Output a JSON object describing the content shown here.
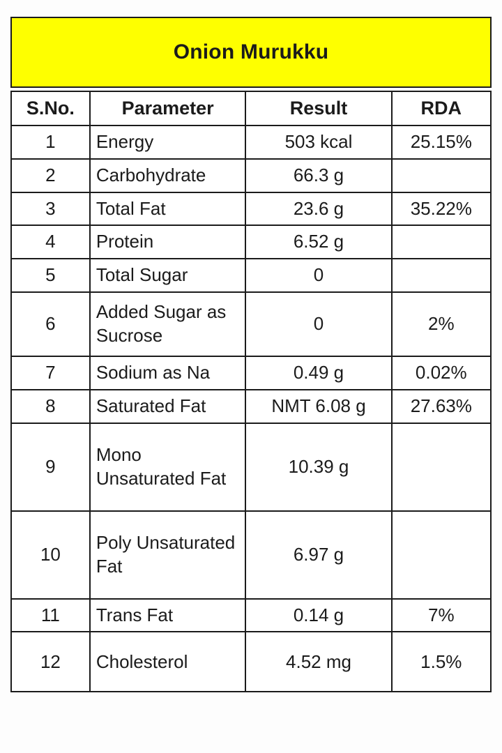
{
  "title": "Onion Murukku",
  "colors": {
    "banner_bg": "#feff00",
    "border": "#1b1b1b",
    "text": "#1b1b1b"
  },
  "table": {
    "headers": {
      "sno": "S.No.",
      "parameter": "Parameter",
      "result": "Result",
      "rda": "RDA"
    },
    "rows": [
      {
        "sno": "1",
        "parameter": "Energy",
        "result": "503 kcal",
        "rda": "25.15%"
      },
      {
        "sno": "2",
        "parameter": "Carbohydrate",
        "result": "66.3 g",
        "rda": ""
      },
      {
        "sno": "3",
        "parameter": "Total Fat",
        "result": "23.6 g",
        "rda": "35.22%"
      },
      {
        "sno": "4",
        "parameter": "Protein",
        "result": "6.52 g",
        "rda": ""
      },
      {
        "sno": "5",
        "parameter": "Total Sugar",
        "result": "0",
        "rda": ""
      },
      {
        "sno": "6",
        "parameter": "Added Sugar as Sucrose",
        "result": "0",
        "rda": "2%"
      },
      {
        "sno": "7",
        "parameter": "Sodium as Na",
        "result": "0.49 g",
        "rda": "0.02%"
      },
      {
        "sno": "8",
        "parameter": "Saturated Fat",
        "result": "NMT 6.08 g",
        "rda": "27.63%"
      },
      {
        "sno": "9",
        "parameter": "Mono Unsaturated Fat",
        "result": "10.39 g",
        "rda": ""
      },
      {
        "sno": "10",
        "parameter": "Poly Unsaturated Fat",
        "result": "6.97 g",
        "rda": ""
      },
      {
        "sno": "11",
        "parameter": "Trans Fat",
        "result": "0.14 g",
        "rda": "7%"
      },
      {
        "sno": "12",
        "parameter": "Cholesterol",
        "result": "4.52 mg",
        "rda": "1.5%"
      }
    ]
  }
}
